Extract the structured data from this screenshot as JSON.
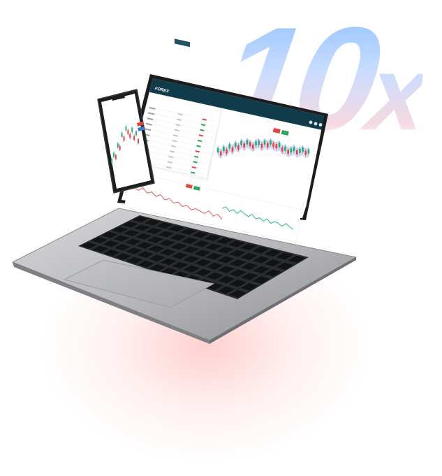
{
  "hero": {
    "big_number": "10",
    "big_suffix": "x"
  },
  "laptop_screen": {
    "brand_logo": "FOREX",
    "colors": {
      "header": "#103b4a",
      "accent_red": "#e0453f",
      "accent_green": "#27a85a",
      "chart_green": "#2bb39a",
      "chart_red": "#e45a5a",
      "band": "#c7cdf3"
    },
    "icons": [
      "menu-icon",
      "user-icon",
      "settings-icon",
      "help-icon",
      "search-icon"
    ]
  },
  "phone_screen": {
    "colors": {
      "candle_green": "#2aa97a",
      "candle_red": "#e0453f",
      "button_red": "#e0453f",
      "button_blue": "#3a7bd5"
    }
  }
}
